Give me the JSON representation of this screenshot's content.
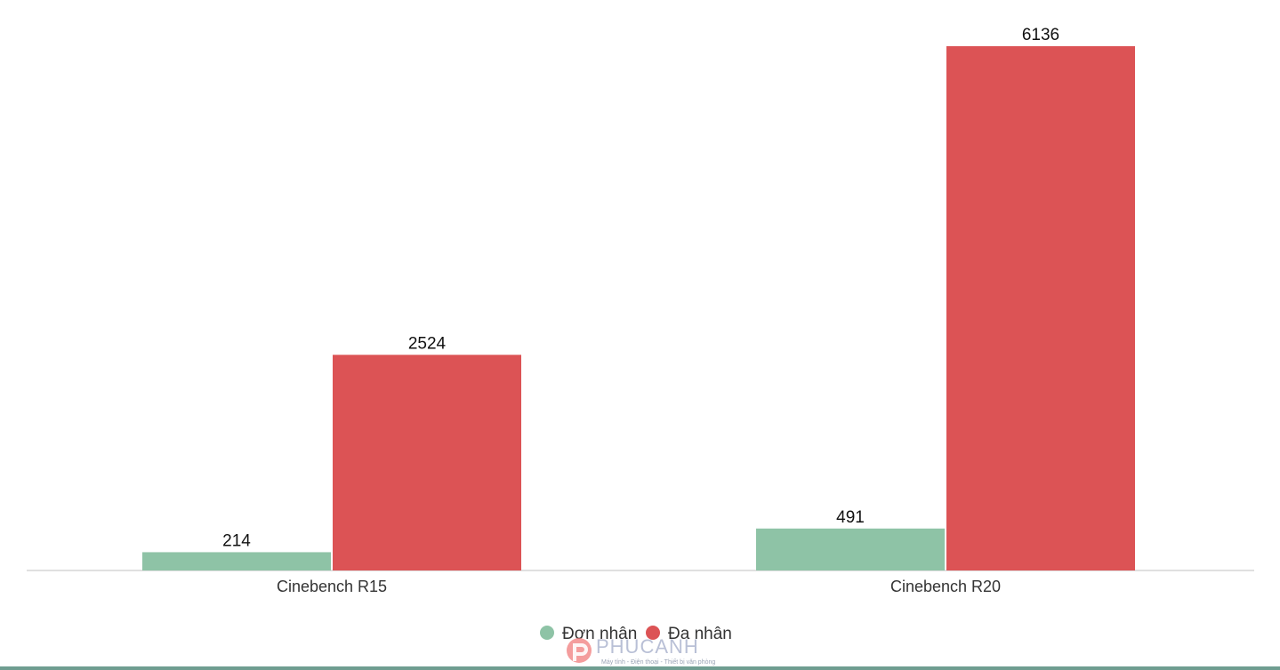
{
  "chart_data": {
    "type": "bar",
    "categories": [
      "Cinebench R15",
      "Cinebench R20"
    ],
    "series": [
      {
        "name": "Đơn nhân",
        "color": "#8ec3a6",
        "values": [
          214,
          491
        ]
      },
      {
        "name": "Đa nhân",
        "color": "#dc5355",
        "values": [
          2524,
          6136
        ]
      }
    ],
    "title": "",
    "xlabel": "",
    "ylabel": "",
    "ylim": [
      0,
      6600
    ],
    "grid": false,
    "legend": "bottom-center",
    "value_labels": true
  },
  "logo": {
    "brand": "PHUCANH",
    "tagline": "Máy tính - Điện thoại - Thiết bị văn phòng",
    "icon": "phucanh-logo-icon"
  },
  "colors": {
    "axis": "#d6d6d6",
    "text": "#333333",
    "bottom_rule": "#6f9d91"
  }
}
